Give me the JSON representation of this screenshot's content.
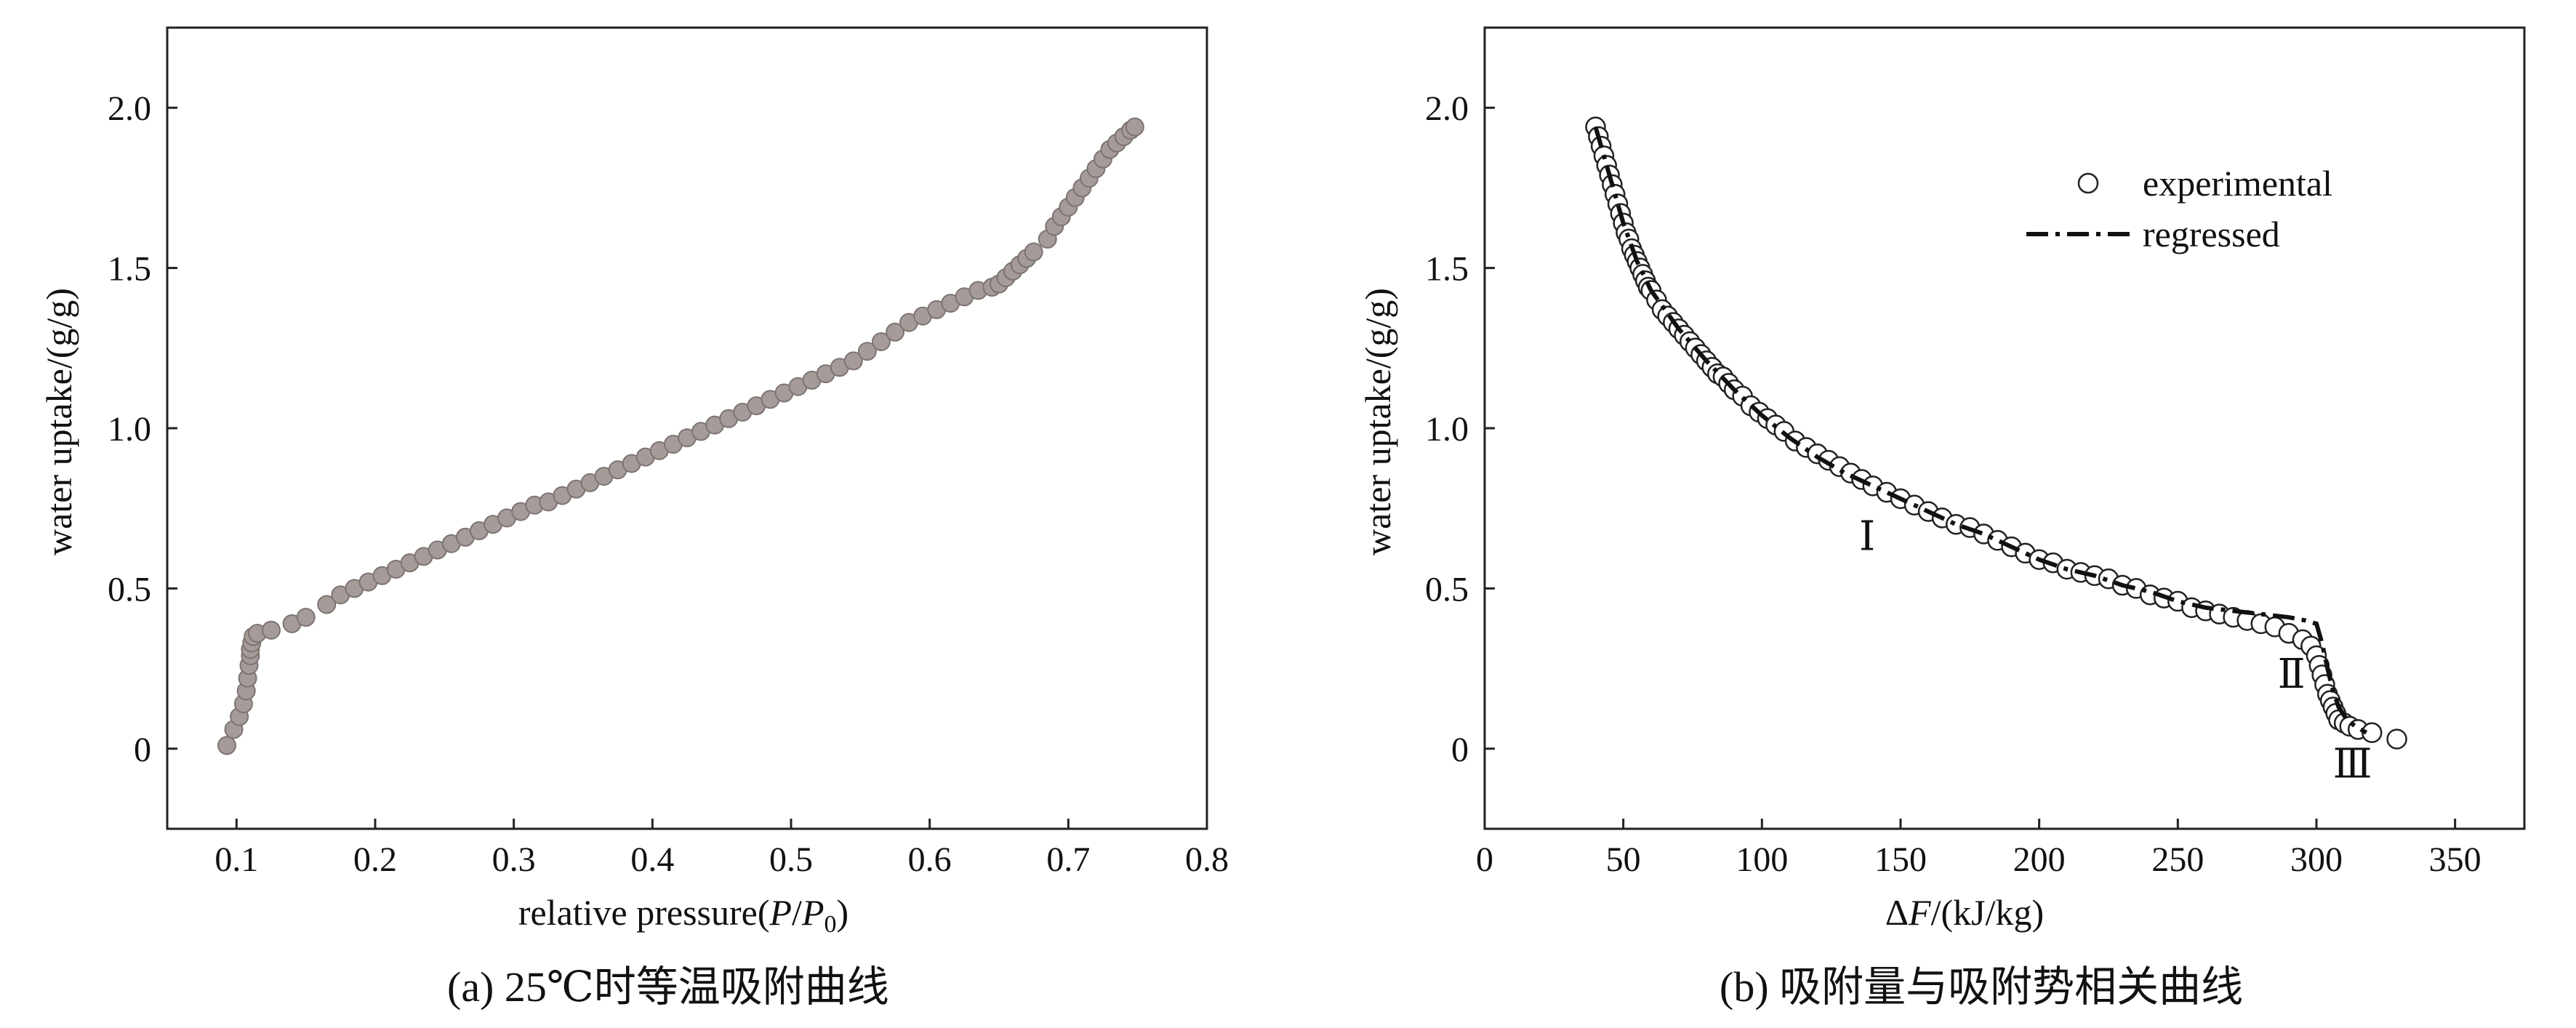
{
  "chart_data": [
    {
      "type": "scatter",
      "caption": "(a) 25℃时等温吸附曲线",
      "xlabel_prefix": "relative pressure(",
      "xlabel_P": "P",
      "xlabel_slash": "/",
      "xlabel_P0": "P",
      "xlabel_sub": "0",
      "xlabel_suffix": ")",
      "ylabel": "water uptake/(g/g)",
      "xlim": [
        0.05,
        0.8
      ],
      "ylim": [
        -0.25,
        2.25
      ],
      "xticks": [
        0.1,
        0.2,
        0.3,
        0.4,
        0.5,
        0.6,
        0.7,
        0.8
      ],
      "xtick_labels": [
        "0.1",
        "0.2",
        "0.3",
        "0.4",
        "0.5",
        "0.6",
        "0.7",
        "0.8"
      ],
      "yticks": [
        0,
        0.5,
        1.0,
        1.5,
        2.0
      ],
      "ytick_labels": [
        "0",
        "0.5",
        "1.0",
        "1.5",
        "2.0"
      ],
      "marker_color": "#a59c9a",
      "series": [
        {
          "x": [
            0.093,
            0.098,
            0.102,
            0.105,
            0.107,
            0.108,
            0.109,
            0.11,
            0.11,
            0.111,
            0.112,
            0.115,
            0.125,
            0.14,
            0.15,
            0.165,
            0.175,
            0.185,
            0.195,
            0.205,
            0.215,
            0.225,
            0.235,
            0.245,
            0.255,
            0.265,
            0.275,
            0.285,
            0.295,
            0.305,
            0.315,
            0.325,
            0.335,
            0.345,
            0.355,
            0.365,
            0.375,
            0.385,
            0.395,
            0.405,
            0.415,
            0.425,
            0.435,
            0.445,
            0.455,
            0.465,
            0.475,
            0.485,
            0.495,
            0.505,
            0.515,
            0.525,
            0.535,
            0.545,
            0.555,
            0.565,
            0.575,
            0.585,
            0.595,
            0.605,
            0.615,
            0.625,
            0.635,
            0.645,
            0.65,
            0.655,
            0.66,
            0.665,
            0.67,
            0.675,
            0.685,
            0.69,
            0.695,
            0.7,
            0.705,
            0.71,
            0.715,
            0.72,
            0.725,
            0.73,
            0.735,
            0.74,
            0.745,
            0.748
          ],
          "y": [
            0.01,
            0.06,
            0.1,
            0.14,
            0.18,
            0.22,
            0.26,
            0.29,
            0.31,
            0.33,
            0.35,
            0.36,
            0.37,
            0.39,
            0.41,
            0.45,
            0.48,
            0.5,
            0.52,
            0.54,
            0.56,
            0.58,
            0.6,
            0.62,
            0.64,
            0.66,
            0.68,
            0.7,
            0.72,
            0.74,
            0.76,
            0.77,
            0.79,
            0.81,
            0.83,
            0.85,
            0.87,
            0.89,
            0.91,
            0.93,
            0.95,
            0.97,
            0.99,
            1.01,
            1.03,
            1.05,
            1.07,
            1.09,
            1.11,
            1.13,
            1.15,
            1.17,
            1.19,
            1.21,
            1.24,
            1.27,
            1.3,
            1.33,
            1.35,
            1.37,
            1.39,
            1.41,
            1.43,
            1.44,
            1.45,
            1.47,
            1.49,
            1.51,
            1.53,
            1.55,
            1.59,
            1.63,
            1.66,
            1.69,
            1.72,
            1.75,
            1.78,
            1.81,
            1.84,
            1.87,
            1.89,
            1.91,
            1.93,
            1.94
          ]
        }
      ]
    },
    {
      "type": "scatter",
      "caption": "(b) 吸附量与吸附势相关曲线",
      "xlabel_delta": "Δ",
      "xlabel_F": "F",
      "xlabel_suffix": "/(kJ/kg)",
      "ylabel": "water uptake/(g/g)",
      "xlim": [
        0,
        375
      ],
      "ylim": [
        -0.25,
        2.25
      ],
      "xticks": [
        0,
        50,
        100,
        150,
        200,
        250,
        300,
        350
      ],
      "xtick_labels": [
        "0",
        "50",
        "100",
        "150",
        "200",
        "250",
        "300",
        "350"
      ],
      "yticks": [
        0,
        0.5,
        1.0,
        1.5,
        2.0
      ],
      "ytick_labels": [
        "0",
        "0.5",
        "1.0",
        "1.5",
        "2.0"
      ],
      "legend": {
        "placement": "top-right",
        "experimental": "experimental",
        "regressed": "regressed"
      },
      "annotations": [
        {
          "text": "Ⅰ",
          "x": 138,
          "y": 0.62
        },
        {
          "text": "Ⅱ",
          "x": 291,
          "y": 0.19
        },
        {
          "text": "Ⅲ",
          "x": 313,
          "y": -0.09
        }
      ],
      "series": [
        {
          "name": "experimental",
          "x": [
            40,
            41,
            42,
            43,
            44,
            45,
            46,
            47,
            48,
            49,
            50,
            51,
            52,
            53,
            54,
            55,
            56,
            57,
            58,
            59,
            60,
            62,
            64,
            66,
            68,
            70,
            72,
            74,
            76,
            78,
            80,
            82,
            84,
            86,
            88,
            90,
            93,
            96,
            99,
            102,
            105,
            108,
            112,
            116,
            120,
            124,
            128,
            132,
            136,
            140,
            145,
            150,
            155,
            160,
            165,
            170,
            175,
            180,
            185,
            190,
            195,
            200,
            205,
            210,
            215,
            220,
            225,
            230,
            235,
            240,
            245,
            250,
            255,
            260,
            265,
            270,
            275,
            280,
            285,
            290,
            295,
            298,
            300,
            301,
            302,
            303,
            304,
            305,
            306,
            307,
            308,
            310,
            312,
            315,
            320,
            329
          ],
          "y": [
            1.94,
            1.91,
            1.88,
            1.85,
            1.82,
            1.79,
            1.76,
            1.73,
            1.7,
            1.67,
            1.64,
            1.61,
            1.59,
            1.56,
            1.54,
            1.52,
            1.5,
            1.48,
            1.46,
            1.44,
            1.43,
            1.4,
            1.37,
            1.35,
            1.33,
            1.31,
            1.29,
            1.27,
            1.25,
            1.23,
            1.21,
            1.19,
            1.17,
            1.16,
            1.14,
            1.12,
            1.1,
            1.07,
            1.05,
            1.03,
            1.01,
            0.99,
            0.96,
            0.94,
            0.92,
            0.9,
            0.88,
            0.86,
            0.84,
            0.82,
            0.8,
            0.78,
            0.76,
            0.74,
            0.72,
            0.7,
            0.69,
            0.67,
            0.65,
            0.63,
            0.61,
            0.59,
            0.58,
            0.56,
            0.55,
            0.54,
            0.53,
            0.51,
            0.5,
            0.48,
            0.47,
            0.46,
            0.44,
            0.43,
            0.42,
            0.41,
            0.4,
            0.39,
            0.38,
            0.36,
            0.34,
            0.32,
            0.29,
            0.26,
            0.23,
            0.2,
            0.17,
            0.15,
            0.13,
            0.11,
            0.09,
            0.08,
            0.07,
            0.06,
            0.05,
            0.03
          ]
        },
        {
          "name": "regressed",
          "x": [
            40,
            45,
            50,
            55,
            60,
            70,
            80,
            90,
            100,
            110,
            120,
            130,
            140,
            150,
            160,
            170,
            180,
            190,
            200,
            210,
            220,
            230,
            240,
            250,
            260,
            270,
            280,
            290,
            296,
            300,
            302,
            304,
            306,
            308,
            311,
            314,
            318
          ],
          "y": [
            1.94,
            1.79,
            1.64,
            1.52,
            1.43,
            1.31,
            1.21,
            1.12,
            1.04,
            0.97,
            0.91,
            0.86,
            0.82,
            0.78,
            0.74,
            0.7,
            0.67,
            0.63,
            0.59,
            0.56,
            0.54,
            0.51,
            0.49,
            0.46,
            0.44,
            0.43,
            0.42,
            0.41,
            0.4,
            0.39,
            0.33,
            0.25,
            0.18,
            0.13,
            0.09,
            0.07,
            0.05
          ]
        }
      ]
    }
  ]
}
